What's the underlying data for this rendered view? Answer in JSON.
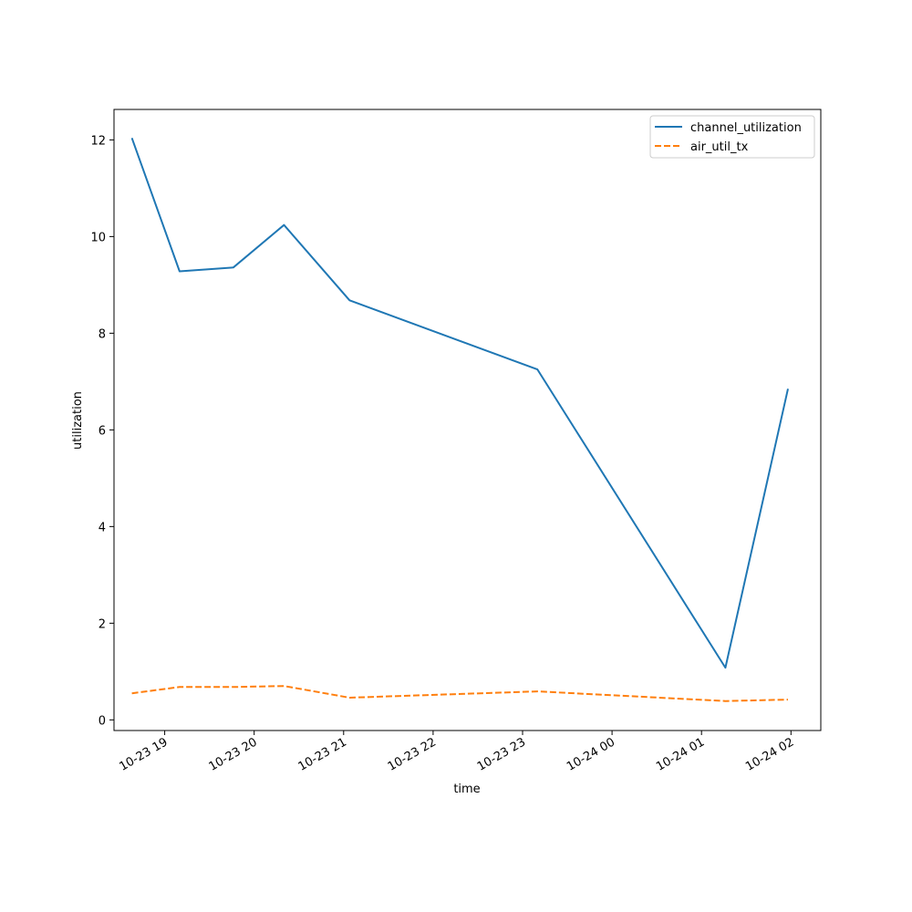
{
  "chart_data": {
    "type": "line",
    "title": "",
    "xlabel": "time",
    "ylabel": "utilization",
    "x_type": "datetime",
    "xlim": [
      "2024-10-23T18:26",
      "2024-10-24T02:20"
    ],
    "ylim": [
      -0.22,
      12.63
    ],
    "x_ticks": [
      {
        "value": "2024-10-23T19:00",
        "label": "10-23 19"
      },
      {
        "value": "2024-10-23T20:00",
        "label": "10-23 20"
      },
      {
        "value": "2024-10-23T21:00",
        "label": "10-23 21"
      },
      {
        "value": "2024-10-23T22:00",
        "label": "10-23 22"
      },
      {
        "value": "2024-10-23T23:00",
        "label": "10-23 23"
      },
      {
        "value": "2024-10-24T00:00",
        "label": "10-24 00"
      },
      {
        "value": "2024-10-24T01:00",
        "label": "10-24 01"
      },
      {
        "value": "2024-10-24T02:00",
        "label": "10-24 02"
      }
    ],
    "y_ticks": [
      0,
      2,
      4,
      6,
      8,
      10,
      12
    ],
    "legend": "upper-right",
    "grid": false,
    "series": [
      {
        "name": "channel_utilization",
        "color": "#1f77b4",
        "style": "solid",
        "points": [
          {
            "x": "2024-10-23T18:38",
            "y": 12.04
          },
          {
            "x": "2024-10-23T19:10",
            "y": 9.28
          },
          {
            "x": "2024-10-23T19:46",
            "y": 9.36
          },
          {
            "x": "2024-10-23T20:20",
            "y": 10.24
          },
          {
            "x": "2024-10-23T21:04",
            "y": 8.68
          },
          {
            "x": "2024-10-23T23:10",
            "y": 7.25
          },
          {
            "x": "2024-10-24T01:16",
            "y": 1.08
          },
          {
            "x": "2024-10-24T01:58",
            "y": 6.85
          }
        ]
      },
      {
        "name": "air_util_tx",
        "color": "#ff7f0e",
        "style": "dashed",
        "points": [
          {
            "x": "2024-10-23T18:38",
            "y": 0.55
          },
          {
            "x": "2024-10-23T19:10",
            "y": 0.68
          },
          {
            "x": "2024-10-23T19:46",
            "y": 0.68
          },
          {
            "x": "2024-10-23T20:20",
            "y": 0.7
          },
          {
            "x": "2024-10-23T21:04",
            "y": 0.46
          },
          {
            "x": "2024-10-23T23:10",
            "y": 0.59
          },
          {
            "x": "2024-10-24T01:16",
            "y": 0.39
          },
          {
            "x": "2024-10-24T01:58",
            "y": 0.42
          }
        ]
      }
    ]
  }
}
